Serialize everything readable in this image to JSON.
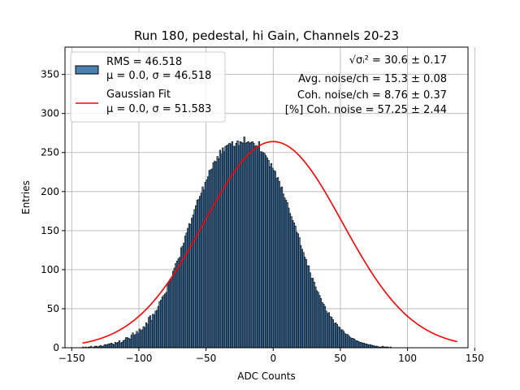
{
  "chart_data": {
    "type": "bar",
    "title": "Run 180, pedestal, hi Gain, Channels 20-23",
    "xlabel": "ADC Counts",
    "ylabel": "Entries",
    "xlim": [
      -155,
      145
    ],
    "ylim": [
      0,
      385
    ],
    "xticks": [
      -150,
      -100,
      -50,
      0,
      50,
      100,
      150
    ],
    "yticks": [
      0,
      50,
      100,
      150,
      200,
      250,
      300,
      350
    ],
    "xtick_labels": [
      "−150",
      "−100",
      "−50",
      "0",
      "50",
      "100",
      "150"
    ],
    "ytick_labels": [
      "0",
      "50",
      "100",
      "150",
      "200",
      "250",
      "300",
      "350"
    ],
    "grid": true,
    "legend_placement": "top-left",
    "histogram": {
      "name": "RMS = 46.518",
      "name_line2": "μ = 0.0, σ = 46.518",
      "bin_start": -142,
      "bin_width": 1,
      "counts": [
        1,
        0,
        1,
        0,
        1,
        1,
        2,
        0,
        1,
        2,
        2,
        1,
        2,
        3,
        2,
        2,
        4,
        4,
        4,
        5,
        5,
        6,
        5,
        4,
        7,
        6,
        7,
        9,
        6,
        7,
        9,
        10,
        13,
        13,
        12,
        11,
        16,
        19,
        16,
        17,
        21,
        18,
        24,
        22,
        23,
        27,
        26,
        32,
        30,
        39,
        41,
        35,
        43,
        42,
        47,
        48,
        53,
        59,
        61,
        65,
        67,
        69,
        71,
        81,
        85,
        88,
        90,
        98,
        102,
        108,
        111,
        114,
        116,
        128,
        130,
        134,
        143,
        147,
        153,
        159,
        158,
        166,
        170,
        177,
        182,
        189,
        190,
        194,
        198,
        206,
        202,
        212,
        215,
        219,
        227,
        228,
        229,
        237,
        239,
        238,
        245,
        242,
        253,
        248,
        256,
        251,
        258,
        259,
        260,
        262,
        261,
        264,
        258,
        258,
        262,
        265,
        259,
        264,
        263,
        262,
        270,
        262,
        263,
        264,
        262,
        263,
        264,
        262,
        258,
        259,
        257,
        264,
        251,
        251,
        250,
        249,
        246,
        243,
        240,
        232,
        236,
        230,
        227,
        226,
        217,
        218,
        213,
        205,
        206,
        197,
        192,
        189,
        186,
        179,
        172,
        168,
        163,
        160,
        156,
        148,
        146,
        141,
        131,
        126,
        122,
        116,
        113,
        105,
        105,
        96,
        89,
        89,
        84,
        78,
        73,
        71,
        67,
        63,
        58,
        56,
        53,
        47,
        44,
        45,
        40,
        39,
        36,
        31,
        32,
        30,
        27,
        26,
        23,
        23,
        21,
        18,
        17,
        17,
        15,
        13,
        12,
        12,
        11,
        9,
        9,
        8,
        7,
        7,
        6,
        6,
        5,
        5,
        4,
        4,
        4,
        3,
        3,
        2,
        2,
        2,
        1,
        1,
        1,
        2,
        1,
        1,
        1,
        1,
        0,
        1
      ],
      "color": "#4a7fb0",
      "edge_color": "#000000"
    },
    "series": [
      {
        "name": "Gaussian Fit",
        "name_line2": "μ = 0.0, σ = 51.583",
        "type": "line",
        "color": "#ff0000",
        "mu": 0.0,
        "sigma": 51.583,
        "amplitude": 264,
        "x_range": [
          -142,
          137
        ]
      }
    ],
    "annotations": [
      {
        "name": "sigma-i-squared-annotation",
        "prefix": "√σᵢ²",
        "text": " = 30.6 ± 0.17"
      },
      {
        "name": "avg-noise-annotation",
        "text": "Avg. noise/ch = 15.3 ± 0.08"
      },
      {
        "name": "coh-noise-annotation",
        "text": "Coh. noise/ch = 8.76 ± 0.37"
      },
      {
        "name": "coh-noise-percent-annotation",
        "text": "[%] Coh. noise = 57.25 ± 2.44"
      }
    ]
  }
}
